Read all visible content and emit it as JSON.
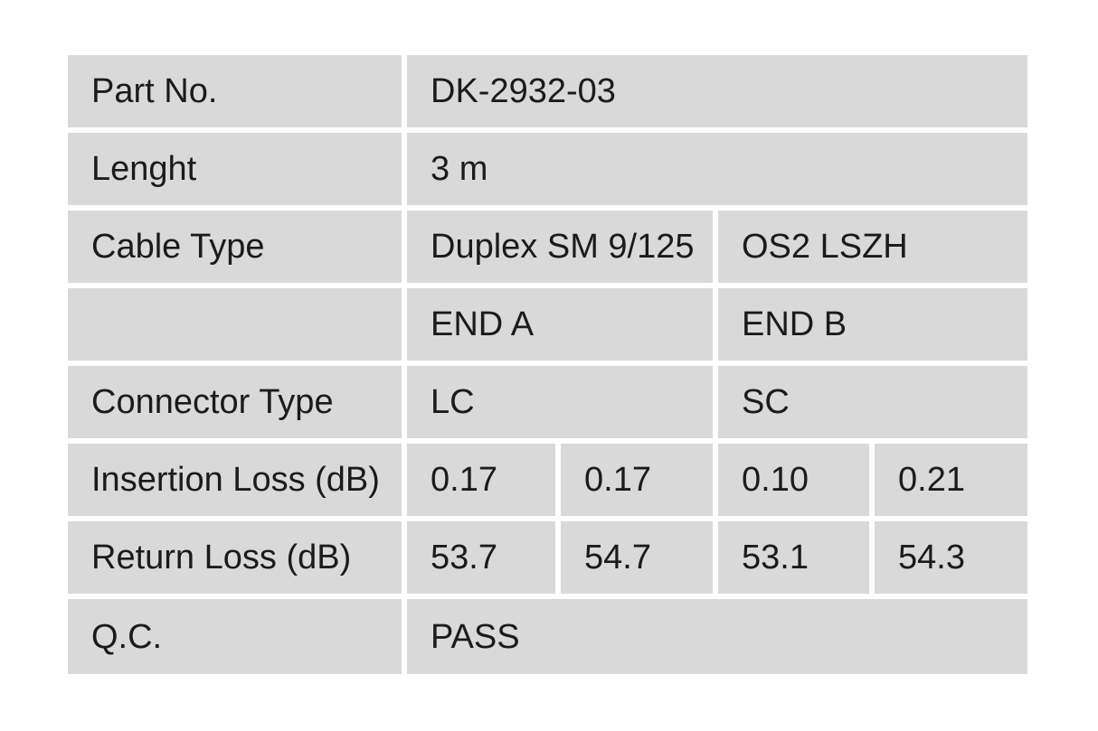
{
  "page": {
    "background_color": "#ffffff"
  },
  "table": {
    "cell_background_color": "#d9d9d9",
    "text_color": "#1b1b1b",
    "rows": {
      "part_no": {
        "label": "Part No.",
        "value": "DK-2932-03"
      },
      "length": {
        "label": "Lenght",
        "value": "3 m"
      },
      "cable_type": {
        "label": "Cable Type",
        "end_a": "Duplex SM 9/125",
        "end_b": "OS2 LSZH"
      },
      "ends_header": {
        "label": "",
        "end_a": "END A",
        "end_b": "END B"
      },
      "connector_type": {
        "label": "Connector Type",
        "end_a": "LC",
        "end_b": "SC"
      },
      "insertion_loss": {
        "label": "Insertion Loss (dB)",
        "values": [
          "0.17",
          "0.17",
          "0.10",
          "0.21"
        ]
      },
      "return_loss": {
        "label": "Return Loss (dB)",
        "values": [
          "53.7",
          "54.7",
          "53.1",
          "54.3"
        ]
      },
      "qc": {
        "label": "Q.C.",
        "value": "PASS"
      }
    }
  }
}
